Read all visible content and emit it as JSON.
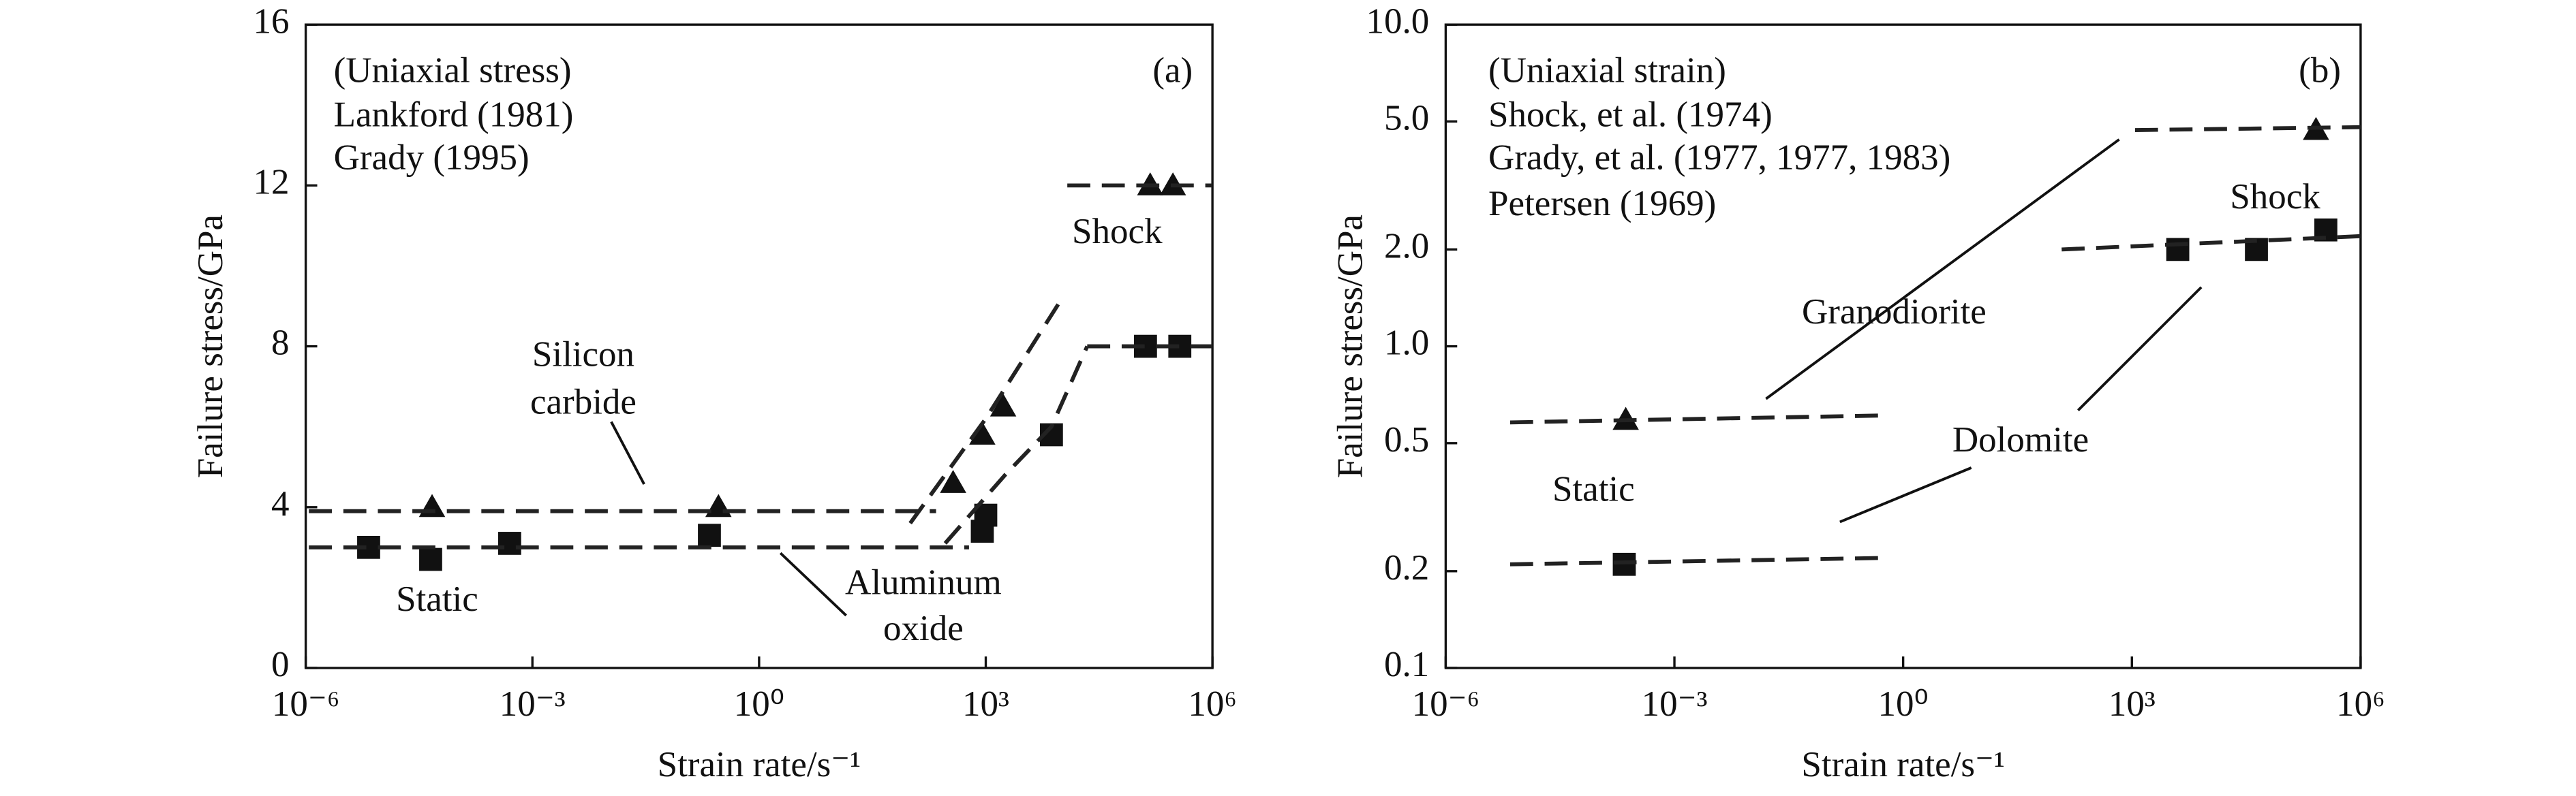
{
  "chart_data": [
    {
      "type": "scatter",
      "panel_label": "(a)",
      "xlabel": "Strain rate/s⁻¹",
      "ylabel": "Failure stress/GPa",
      "xscale": "log",
      "xlim": [
        1e-06,
        1000000
      ],
      "xticks": [
        {
          "value": 1e-06,
          "label": "10⁻⁶"
        },
        {
          "value": 0.001,
          "label": "10⁻³"
        },
        {
          "value": 1,
          "label": "10⁰"
        },
        {
          "value": 1000,
          "label": "10³"
        },
        {
          "value": 1000000,
          "label": "10⁶"
        }
      ],
      "ylim": [
        0,
        16
      ],
      "yticks": [
        0,
        4,
        8,
        12,
        16
      ],
      "annotations": [
        "(Uniaxial stress)",
        "Lankford (1981)",
        "Grady (1995)",
        "Shock",
        "Silicon",
        "carbide",
        "Aluminum",
        "oxide",
        "Static"
      ],
      "series": [
        {
          "marker": "triangle",
          "color": "#111111",
          "x": [
            4.7e-05,
            0.29,
            370,
            900,
            1700,
            150000,
            300000
          ],
          "values": [
            4,
            4,
            4.6,
            5.8,
            6.5,
            12,
            12
          ]
        },
        {
          "marker": "square",
          "color": "#111111",
          "x": [
            6.8e-06,
            4.5e-05,
            0.0005,
            0.22,
            900,
            1000,
            7400,
            130000,
            370000
          ],
          "values": [
            3,
            2.7,
            3.1,
            3.3,
            3.4,
            3.8,
            5.8,
            8,
            8
          ]
        },
        {
          "marker": "none",
          "dash": true,
          "color": "#222222",
          "x": [
            1.1e-06,
            220
          ],
          "values": [
            3.9,
            3.9
          ]
        },
        {
          "marker": "none",
          "dash": true,
          "color": "#222222",
          "x": [
            100,
            1000,
            9500
          ],
          "values": [
            3.6,
            6.2,
            9.1
          ]
        },
        {
          "marker": "none",
          "dash": true,
          "color": "#222222",
          "x": [
            12000,
            1000000
          ],
          "values": [
            12,
            12
          ]
        },
        {
          "marker": "none",
          "dash": true,
          "color": "#222222",
          "x": [
            1.1e-06,
            600
          ],
          "values": [
            3,
            3
          ]
        },
        {
          "marker": "none",
          "dash": true,
          "color": "#222222",
          "x": [
            290,
            1800,
            7400,
            22000
          ],
          "values": [
            3.1,
            4.8,
            6,
            8
          ]
        },
        {
          "marker": "none",
          "dash": true,
          "color": "#222222",
          "x": [
            22000,
            1000000
          ],
          "values": [
            8,
            8
          ]
        }
      ]
    },
    {
      "type": "scatter",
      "panel_label": "(b)",
      "xlabel": "Strain rate/s⁻¹",
      "ylabel": "Failure stress/GPa",
      "xscale": "log",
      "xlim": [
        1e-06,
        1000000
      ],
      "xticks": [
        {
          "value": 1e-06,
          "label": "10⁻⁶"
        },
        {
          "value": 0.001,
          "label": "10⁻³"
        },
        {
          "value": 1,
          "label": "10⁰"
        },
        {
          "value": 1000,
          "label": "10³"
        },
        {
          "value": 1000000,
          "label": "10⁶"
        }
      ],
      "yscale": "log",
      "ylim": [
        0.1,
        10
      ],
      "yticks": [
        0.1,
        0.2,
        0.5,
        {
          "value": 1,
          "label": "1.0"
        },
        {
          "value": 2,
          "label": "2.0"
        },
        {
          "value": 5,
          "label": "5.0"
        },
        {
          "value": 10,
          "label": "10.0"
        }
      ],
      "annotations": [
        "(Uniaxial strain)",
        "Shock, et al. (1974)",
        "Grady, et al. (1977, 1977, 1983)",
        "Petersen (1969)",
        "Granodiorite",
        "Dolomite",
        "Shock",
        "Static"
      ],
      "series": [
        {
          "marker": "triangle",
          "color": "#111111",
          "x": [
            0.00023,
            260000
          ],
          "values": [
            0.59,
            4.7
          ]
        },
        {
          "marker": "square",
          "color": "#111111",
          "x": [
            0.00022,
            4000,
            43000,
            350000
          ],
          "values": [
            0.21,
            2,
            2,
            2.3
          ]
        },
        {
          "marker": "none",
          "dash": true,
          "color": "#222222",
          "x": [
            7e-06,
            0.66
          ],
          "values": [
            0.58,
            0.61
          ]
        },
        {
          "marker": "none",
          "dash": true,
          "color": "#222222",
          "x": [
            1100,
            1000000
          ],
          "values": [
            4.7,
            4.8
          ]
        },
        {
          "marker": "none",
          "dash": true,
          "color": "#222222",
          "x": [
            7e-06,
            0.66
          ],
          "values": [
            0.21,
            0.22
          ]
        },
        {
          "marker": "none",
          "dash": true,
          "color": "#222222",
          "x": [
            120,
            1000000
          ],
          "values": [
            2,
            2.2
          ]
        }
      ]
    }
  ]
}
